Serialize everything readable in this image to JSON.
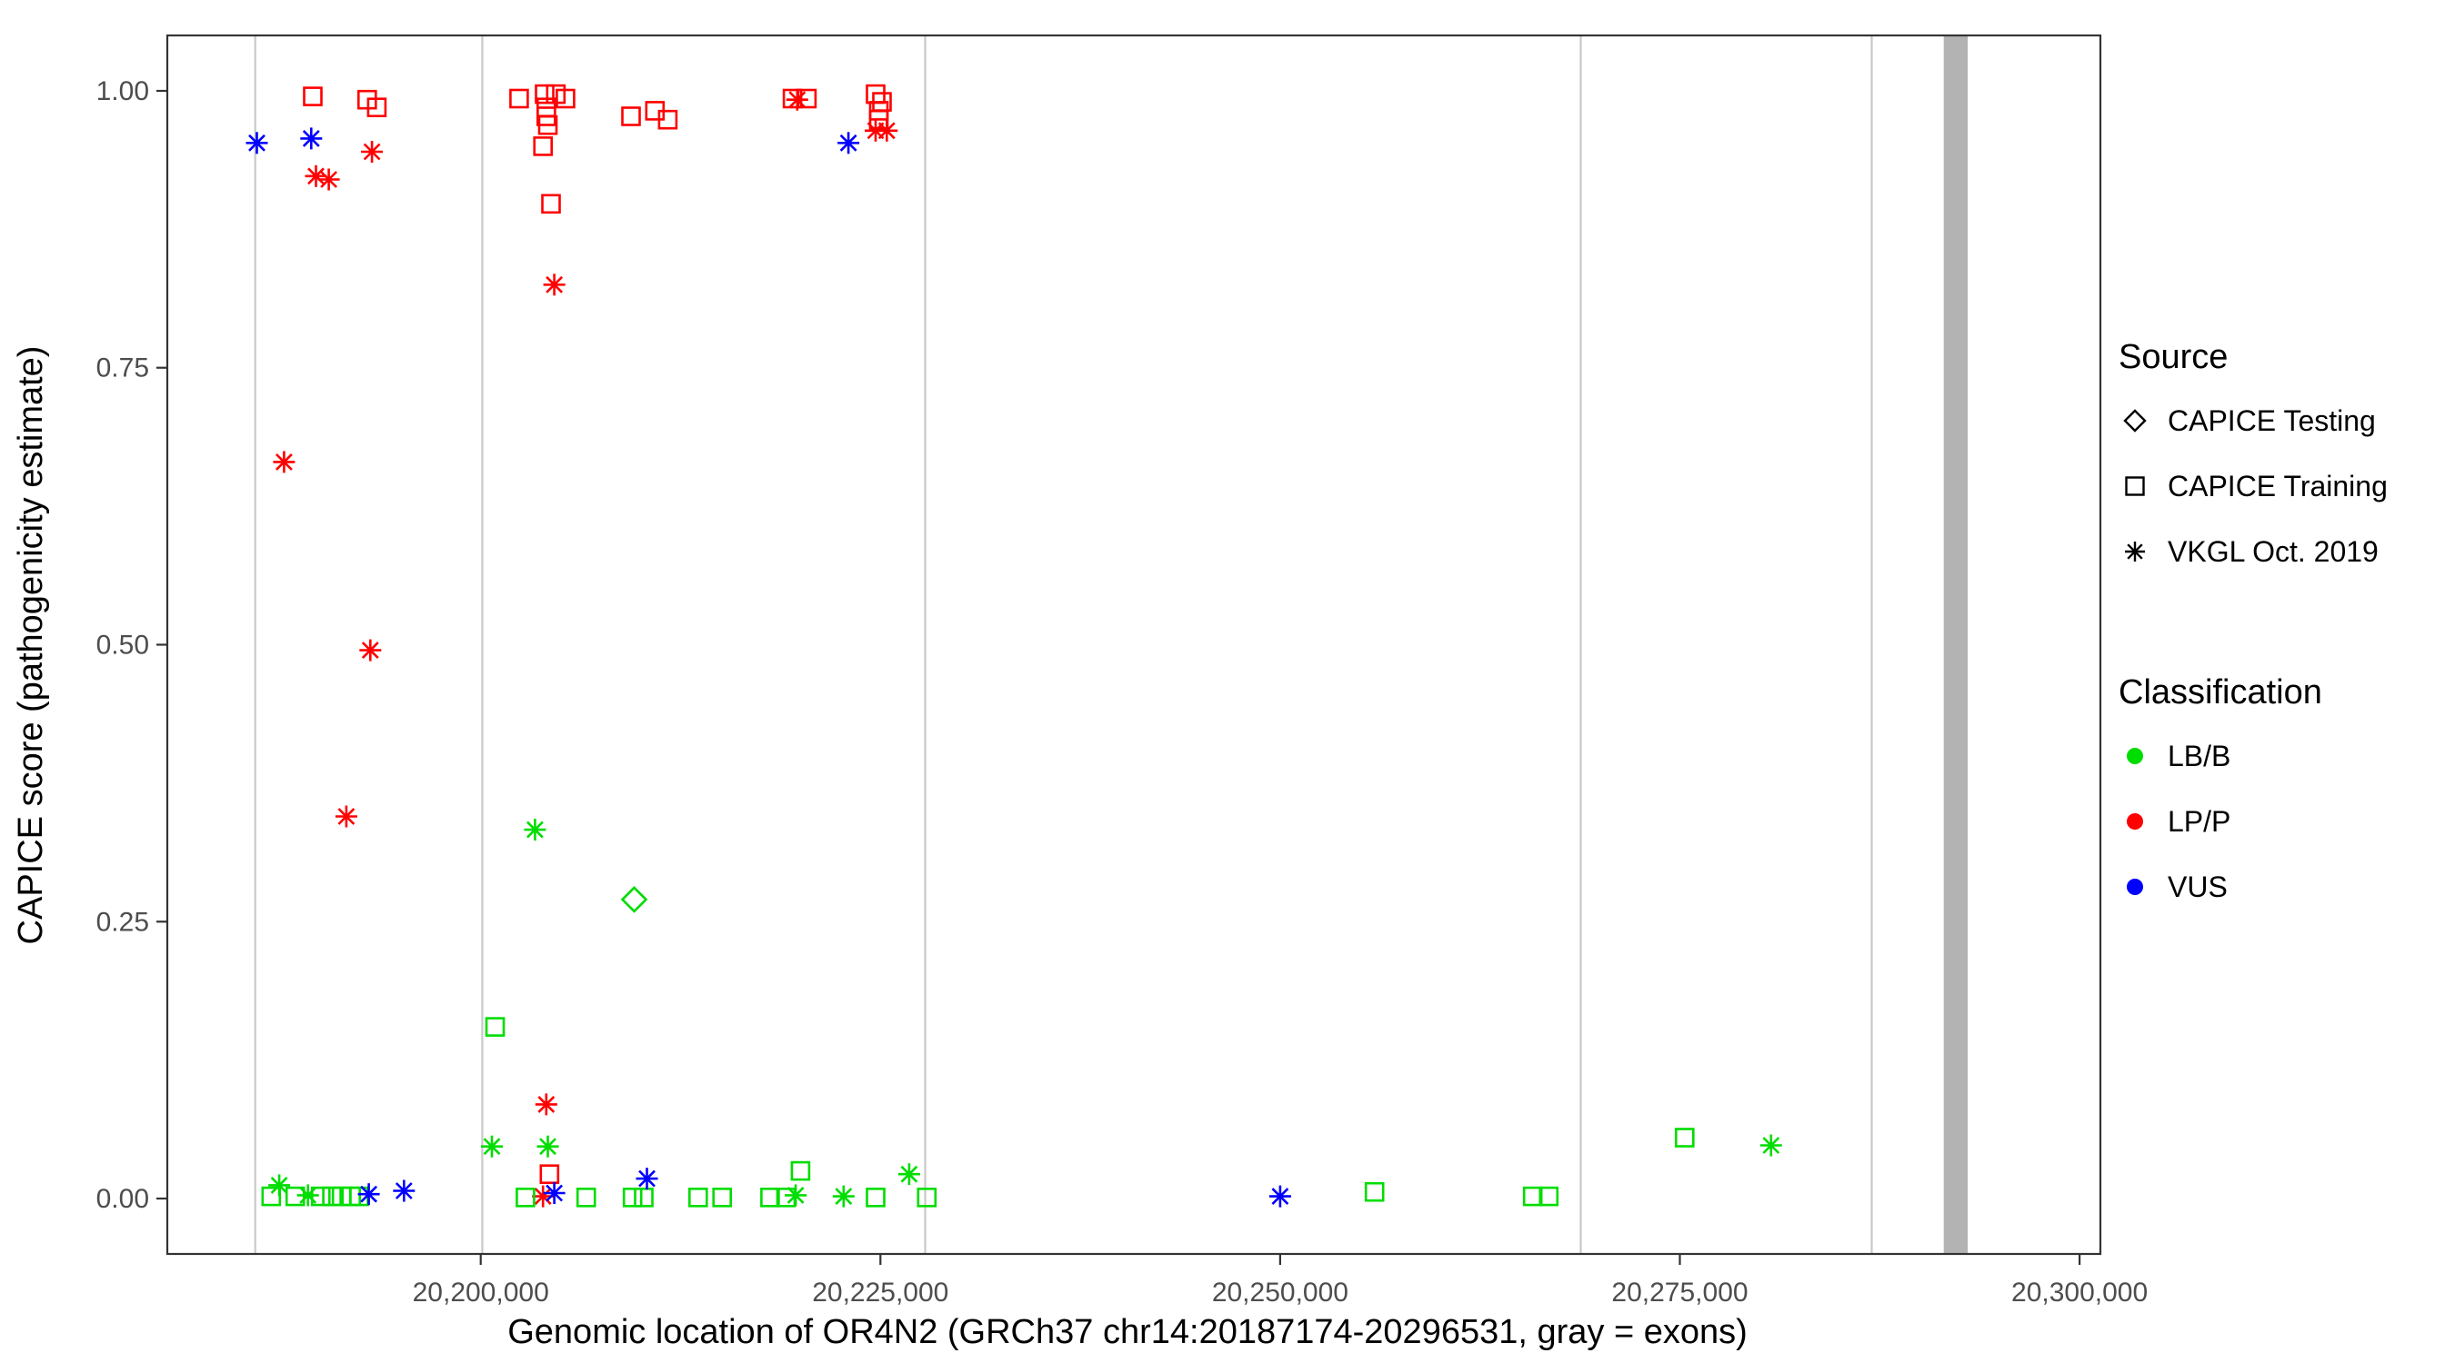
{
  "chart_data": {
    "type": "scatter",
    "title": "",
    "xlabel": "Genomic location of OR4N2 (GRCh37 chr14:20187174-20296531, gray = exons)",
    "ylabel": "CAPICE score (pathogenicity estimate)",
    "xlim": [
      20180400,
      20301300
    ],
    "ylim": [
      -0.05,
      1.05
    ],
    "grid": false,
    "legend_position": "right",
    "xticks": [
      {
        "value": 20200000,
        "label": "20,200,000"
      },
      {
        "value": 20225000,
        "label": "20,225,000"
      },
      {
        "value": 20250000,
        "label": "20,250,000"
      },
      {
        "value": 20275000,
        "label": "20,275,000"
      },
      {
        "value": 20300000,
        "label": "20,300,000"
      }
    ],
    "yticks": [
      {
        "value": 0,
        "label": "0.00"
      },
      {
        "value": 0.25,
        "label": "0.25"
      },
      {
        "value": 0.5,
        "label": "0.50"
      },
      {
        "value": 0.75,
        "label": "0.75"
      },
      {
        "value": 1,
        "label": "1.00"
      }
    ],
    "exon_line_color": "#c9c9c9",
    "exon_band_color": "#b3b3b3",
    "exon_lines": [
      20185900,
      20200100,
      20227800,
      20268800,
      20287000
    ],
    "exon_band": {
      "start": 20291500,
      "end": 20293000
    },
    "shape_map": {
      "CAPICE Testing": "diamond",
      "CAPICE Training": "square",
      "VKGL Oct. 2019": "asterisk"
    },
    "color_map": {
      "LB/B": "#00dd00",
      "LP/P": "#ff0000",
      "VUS": "#0000ff"
    },
    "points": [
      {
        "x": 20186000,
        "y": 0.953,
        "source": "VKGL Oct. 2019",
        "classification": "VUS"
      },
      {
        "x": 20189400,
        "y": 0.957,
        "source": "VKGL Oct. 2019",
        "classification": "VUS"
      },
      {
        "x": 20189500,
        "y": 0.995,
        "source": "CAPICE Training",
        "classification": "LP/P"
      },
      {
        "x": 20189700,
        "y": 0.923,
        "source": "VKGL Oct. 2019",
        "classification": "LP/P"
      },
      {
        "x": 20190500,
        "y": 0.92,
        "source": "VKGL Oct. 2019",
        "classification": "LP/P"
      },
      {
        "x": 20192900,
        "y": 0.992,
        "source": "CAPICE Training",
        "classification": "LP/P"
      },
      {
        "x": 20193500,
        "y": 0.985,
        "source": "CAPICE Training",
        "classification": "LP/P"
      },
      {
        "x": 20193200,
        "y": 0.945,
        "source": "VKGL Oct. 2019",
        "classification": "LP/P"
      },
      {
        "x": 20187700,
        "y": 0.665,
        "source": "VKGL Oct. 2019",
        "classification": "LP/P"
      },
      {
        "x": 20193100,
        "y": 0.495,
        "source": "VKGL Oct. 2019",
        "classification": "LP/P"
      },
      {
        "x": 20191600,
        "y": 0.345,
        "source": "VKGL Oct. 2019",
        "classification": "LP/P"
      },
      {
        "x": 20187400,
        "y": 0.012,
        "source": "VKGL Oct. 2019",
        "classification": "LB/B"
      },
      {
        "x": 20186900,
        "y": 0.002,
        "source": "CAPICE Training",
        "classification": "LB/B"
      },
      {
        "x": 20188400,
        "y": 0.002,
        "source": "CAPICE Training",
        "classification": "LB/B"
      },
      {
        "x": 20189200,
        "y": 0.003,
        "source": "VKGL Oct. 2019",
        "classification": "LB/B"
      },
      {
        "x": 20190000,
        "y": 0.002,
        "source": "CAPICE Training",
        "classification": "LB/B"
      },
      {
        "x": 20190700,
        "y": 0.002,
        "source": "CAPICE Training",
        "classification": "LB/B"
      },
      {
        "x": 20191300,
        "y": 0.002,
        "source": "CAPICE Training",
        "classification": "LB/B"
      },
      {
        "x": 20191900,
        "y": 0.002,
        "source": "CAPICE Training",
        "classification": "LB/B"
      },
      {
        "x": 20192400,
        "y": 0.002,
        "source": "CAPICE Training",
        "classification": "LB/B"
      },
      {
        "x": 20193000,
        "y": 0.004,
        "source": "VKGL Oct. 2019",
        "classification": "VUS"
      },
      {
        "x": 20195200,
        "y": 0.007,
        "source": "VKGL Oct. 2019",
        "classification": "VUS"
      },
      {
        "x": 20202400,
        "y": 0.993,
        "source": "CAPICE Training",
        "classification": "LP/P"
      },
      {
        "x": 20204000,
        "y": 0.997,
        "source": "CAPICE Training",
        "classification": "LP/P"
      },
      {
        "x": 20204700,
        "y": 0.997,
        "source": "CAPICE Training",
        "classification": "LP/P"
      },
      {
        "x": 20205300,
        "y": 0.993,
        "source": "CAPICE Training",
        "classification": "LP/P"
      },
      {
        "x": 20204100,
        "y": 0.985,
        "source": "CAPICE Training",
        "classification": "LP/P"
      },
      {
        "x": 20204100,
        "y": 0.977,
        "source": "CAPICE Training",
        "classification": "LP/P"
      },
      {
        "x": 20204200,
        "y": 0.969,
        "source": "CAPICE Training",
        "classification": "LP/P"
      },
      {
        "x": 20203900,
        "y": 0.95,
        "source": "CAPICE Training",
        "classification": "LP/P"
      },
      {
        "x": 20204400,
        "y": 0.898,
        "source": "CAPICE Training",
        "classification": "LP/P"
      },
      {
        "x": 20204600,
        "y": 0.825,
        "source": "VKGL Oct. 2019",
        "classification": "LP/P"
      },
      {
        "x": 20203400,
        "y": 0.333,
        "source": "VKGL Oct. 2019",
        "classification": "LB/B"
      },
      {
        "x": 20200900,
        "y": 0.155,
        "source": "CAPICE Training",
        "classification": "LB/B"
      },
      {
        "x": 20204100,
        "y": 0.085,
        "source": "VKGL Oct. 2019",
        "classification": "LP/P"
      },
      {
        "x": 20200700,
        "y": 0.047,
        "source": "VKGL Oct. 2019",
        "classification": "LB/B"
      },
      {
        "x": 20204200,
        "y": 0.047,
        "source": "VKGL Oct. 2019",
        "classification": "LB/B"
      },
      {
        "x": 20204300,
        "y": 0.022,
        "source": "CAPICE Training",
        "classification": "LP/P"
      },
      {
        "x": 20203900,
        "y": 0.002,
        "source": "VKGL Oct. 2019",
        "classification": "LP/P"
      },
      {
        "x": 20204600,
        "y": 0.005,
        "source": "VKGL Oct. 2019",
        "classification": "VUS"
      },
      {
        "x": 20202800,
        "y": 0.001,
        "source": "CAPICE Training",
        "classification": "LB/B"
      },
      {
        "x": 20206600,
        "y": 0.001,
        "source": "CAPICE Training",
        "classification": "LB/B"
      },
      {
        "x": 20209600,
        "y": 0.27,
        "source": "CAPICE Testing",
        "classification": "LB/B"
      },
      {
        "x": 20209400,
        "y": 0.977,
        "source": "CAPICE Training",
        "classification": "LP/P"
      },
      {
        "x": 20210900,
        "y": 0.982,
        "source": "CAPICE Training",
        "classification": "LP/P"
      },
      {
        "x": 20211700,
        "y": 0.974,
        "source": "CAPICE Training",
        "classification": "LP/P"
      },
      {
        "x": 20209500,
        "y": 0.001,
        "source": "CAPICE Training",
        "classification": "LB/B"
      },
      {
        "x": 20210200,
        "y": 0.001,
        "source": "CAPICE Training",
        "classification": "LB/B"
      },
      {
        "x": 20210400,
        "y": 0.018,
        "source": "VKGL Oct. 2019",
        "classification": "VUS"
      },
      {
        "x": 20213600,
        "y": 0.001,
        "source": "CAPICE Training",
        "classification": "LB/B"
      },
      {
        "x": 20215100,
        "y": 0.001,
        "source": "CAPICE Training",
        "classification": "LB/B"
      },
      {
        "x": 20219500,
        "y": 0.993,
        "source": "CAPICE Training",
        "classification": "LP/P"
      },
      {
        "x": 20219800,
        "y": 0.992,
        "source": "VKGL Oct. 2019",
        "classification": "LP/P"
      },
      {
        "x": 20220400,
        "y": 0.993,
        "source": "CAPICE Training",
        "classification": "LP/P"
      },
      {
        "x": 20223000,
        "y": 0.953,
        "source": "VKGL Oct. 2019",
        "classification": "VUS"
      },
      {
        "x": 20224700,
        "y": 0.997,
        "source": "CAPICE Training",
        "classification": "LP/P"
      },
      {
        "x": 20225100,
        "y": 0.99,
        "source": "CAPICE Training",
        "classification": "LP/P"
      },
      {
        "x": 20224900,
        "y": 0.982,
        "source": "CAPICE Training",
        "classification": "LP/P"
      },
      {
        "x": 20224900,
        "y": 0.974,
        "source": "CAPICE Training",
        "classification": "LP/P"
      },
      {
        "x": 20224700,
        "y": 0.964,
        "source": "VKGL Oct. 2019",
        "classification": "LP/P"
      },
      {
        "x": 20225400,
        "y": 0.964,
        "source": "VKGL Oct. 2019",
        "classification": "LP/P"
      },
      {
        "x": 20218100,
        "y": 0.001,
        "source": "CAPICE Training",
        "classification": "LB/B"
      },
      {
        "x": 20219100,
        "y": 0.001,
        "source": "CAPICE Training",
        "classification": "LB/B"
      },
      {
        "x": 20219700,
        "y": 0.003,
        "source": "VKGL Oct. 2019",
        "classification": "LB/B"
      },
      {
        "x": 20220000,
        "y": 0.025,
        "source": "CAPICE Training",
        "classification": "LB/B"
      },
      {
        "x": 20222700,
        "y": 0.002,
        "source": "VKGL Oct. 2019",
        "classification": "LB/B"
      },
      {
        "x": 20224700,
        "y": 0.001,
        "source": "CAPICE Training",
        "classification": "LB/B"
      },
      {
        "x": 20226800,
        "y": 0.022,
        "source": "VKGL Oct. 2019",
        "classification": "LB/B"
      },
      {
        "x": 20227900,
        "y": 0.001,
        "source": "CAPICE Training",
        "classification": "LB/B"
      },
      {
        "x": 20250000,
        "y": 0.002,
        "source": "VKGL Oct. 2019",
        "classification": "VUS"
      },
      {
        "x": 20255900,
        "y": 0.006,
        "source": "CAPICE Training",
        "classification": "LB/B"
      },
      {
        "x": 20265800,
        "y": 0.002,
        "source": "CAPICE Training",
        "classification": "LB/B"
      },
      {
        "x": 20266800,
        "y": 0.002,
        "source": "CAPICE Training",
        "classification": "LB/B"
      },
      {
        "x": 20275300,
        "y": 0.055,
        "source": "CAPICE Training",
        "classification": "LB/B"
      },
      {
        "x": 20280700,
        "y": 0.048,
        "source": "VKGL Oct. 2019",
        "classification": "LB/B"
      }
    ]
  },
  "legend": {
    "source_title": "Source",
    "source_items": [
      {
        "label": "CAPICE Testing",
        "shape": "diamond"
      },
      {
        "label": "CAPICE Training",
        "shape": "square"
      },
      {
        "label": "VKGL Oct. 2019",
        "shape": "asterisk"
      }
    ],
    "classification_title": "Classification",
    "classification_items": [
      {
        "label": "LB/B",
        "color": "#00dd00"
      },
      {
        "label": "LP/P",
        "color": "#ff0000"
      },
      {
        "label": "VUS",
        "color": "#0000ff"
      }
    ]
  }
}
